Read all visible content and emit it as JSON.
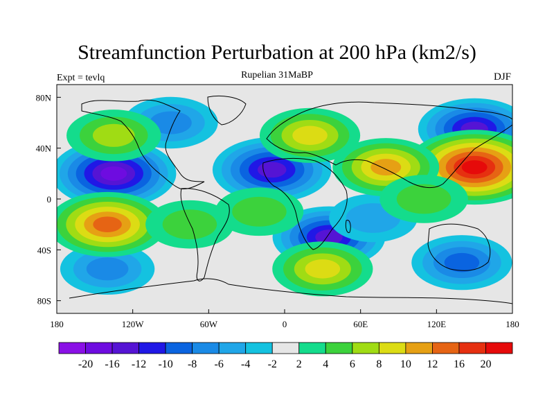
{
  "title": "Streamfunction Perturbation at 200 hPa (km2/s)",
  "subtitle": "Rupelian  31MaBP",
  "left_label": "Expt = tevlq",
  "right_label": "DJF",
  "x_ticks": [
    "180",
    "120W",
    "60W",
    "0",
    "60E",
    "120E",
    "180"
  ],
  "y_ticks": [
    "80N",
    "40N",
    "0",
    "40S",
    "80S"
  ],
  "colorbar": {
    "colors": [
      "#8a10e6",
      "#6e0ce0",
      "#5514d4",
      "#2018e6",
      "#0a64e0",
      "#1a8ae6",
      "#20a6e8",
      "#14c2e0",
      "#e6e6e6",
      "#14dc8c",
      "#3cd23c",
      "#a0dc14",
      "#dcdc14",
      "#e6a014",
      "#e66414",
      "#e63010",
      "#e60a0a"
    ],
    "labels": [
      "-20",
      "-16",
      "-12",
      "-10",
      "-8",
      "-6",
      "-4",
      "-2",
      "2",
      "4",
      "6",
      "8",
      "10",
      "12",
      "16",
      "20"
    ]
  },
  "blobs": [
    {
      "lon": -135,
      "lat": 20,
      "value": -16
    },
    {
      "lon": -10,
      "lat": 23,
      "value": -14
    },
    {
      "lon": 150,
      "lat": 55,
      "value": -12
    },
    {
      "lon": 35,
      "lat": -30,
      "value": -12
    },
    {
      "lon": -90,
      "lat": 60,
      "value": -6
    },
    {
      "lon": 140,
      "lat": -50,
      "value": -8
    },
    {
      "lon": -140,
      "lat": -55,
      "value": -6
    },
    {
      "lon": 70,
      "lat": -15,
      "value": -4
    },
    {
      "lon": 150,
      "lat": 25,
      "value": 20
    },
    {
      "lon": -140,
      "lat": -20,
      "value": 14
    },
    {
      "lon": 20,
      "lat": 50,
      "value": 8
    },
    {
      "lon": 80,
      "lat": 25,
      "value": 10
    },
    {
      "lon": 30,
      "lat": -55,
      "value": 8
    },
    {
      "lon": -135,
      "lat": 50,
      "value": 6
    },
    {
      "lon": -75,
      "lat": -20,
      "value": 4
    },
    {
      "lon": -20,
      "lat": -10,
      "value": 4
    },
    {
      "lon": 110,
      "lat": 0,
      "value": 4
    }
  ]
}
